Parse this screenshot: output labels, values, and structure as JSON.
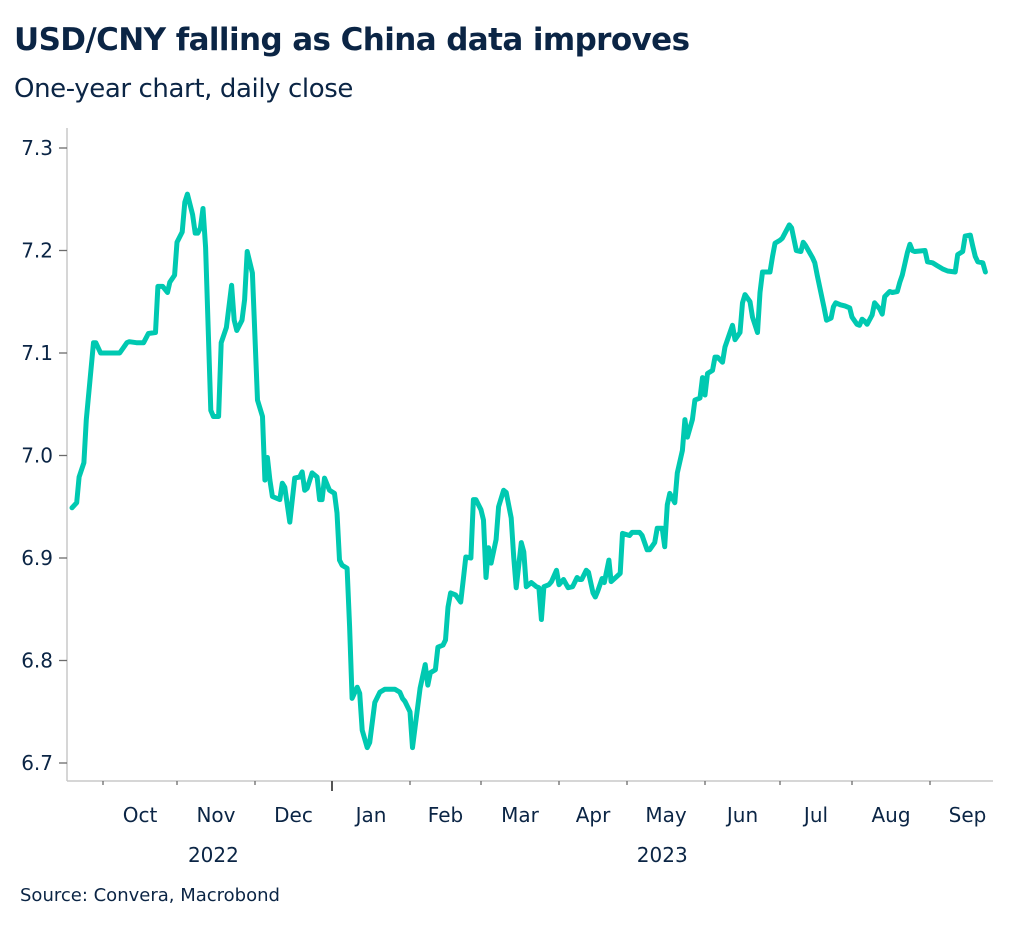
{
  "header": {
    "title": "USD/CNY falling as China data improves",
    "subtitle": "One-year chart, daily close"
  },
  "footer": {
    "source": "Source: Convera, Macrobond"
  },
  "colors": {
    "line": "#00c9b1",
    "text": "#0b2545",
    "axis": "#c8c8c8",
    "tick": "#6b6b6b"
  },
  "chart_data": {
    "type": "line",
    "title": "USD/CNY falling as China data improves",
    "subtitle": "One-year chart, daily close",
    "xlabel": "",
    "ylabel": "",
    "ylim": [
      6.7,
      7.3
    ],
    "xlim": [
      "2022-09-18",
      "2023-09-24"
    ],
    "yticks": [
      6.7,
      6.8,
      6.9,
      7.0,
      7.1,
      7.2,
      7.3
    ],
    "ytick_labels": [
      "6.7",
      "6.8",
      "6.9",
      "7.0",
      "7.1",
      "7.2",
      "7.3"
    ],
    "xticks": [
      {
        "date": "2022-10-01",
        "label": "Oct"
      },
      {
        "date": "2022-11-01",
        "label": "Nov"
      },
      {
        "date": "2022-12-01",
        "label": "Dec"
      },
      {
        "date": "2023-01-01",
        "label": "Jan",
        "year_boundary": true
      },
      {
        "date": "2023-02-01",
        "label": "Feb"
      },
      {
        "date": "2023-03-01",
        "label": "Mar"
      },
      {
        "date": "2023-04-01",
        "label": "Apr"
      },
      {
        "date": "2023-05-01",
        "label": "May"
      },
      {
        "date": "2023-06-01",
        "label": "Jun"
      },
      {
        "date": "2023-07-01",
        "label": "Jul"
      },
      {
        "date": "2023-08-01",
        "label": "Aug"
      },
      {
        "date": "2023-09-01",
        "label": "Sep"
      }
    ],
    "year_labels": [
      {
        "label": "2022",
        "date": "2022-11-15"
      },
      {
        "label": "2023",
        "date": "2023-05-15"
      }
    ],
    "grid": false,
    "legend": "none",
    "source": "Source: Convera, Macrobond",
    "series": [
      {
        "name": "USD/CNY",
        "color": "#00c9b1",
        "points": [
          [
            "2022-09-18",
            6.949
          ],
          [
            "2022-09-20",
            6.954
          ],
          [
            "2022-09-21",
            6.979
          ],
          [
            "2022-09-23",
            6.993
          ],
          [
            "2022-09-24",
            7.035
          ],
          [
            "2022-09-27",
            7.11
          ],
          [
            "2022-09-28",
            7.11
          ],
          [
            "2022-09-30",
            7.1
          ],
          [
            "2022-10-08",
            7.1
          ],
          [
            "2022-10-11",
            7.11
          ],
          [
            "2022-10-12",
            7.111
          ],
          [
            "2022-10-15",
            7.11
          ],
          [
            "2022-10-18",
            7.11
          ],
          [
            "2022-10-20",
            7.119
          ],
          [
            "2022-10-23",
            7.12
          ],
          [
            "2022-10-24",
            7.165
          ],
          [
            "2022-10-26",
            7.165
          ],
          [
            "2022-10-28",
            7.159
          ],
          [
            "2022-10-29",
            7.169
          ],
          [
            "2022-10-31",
            7.176
          ],
          [
            "2022-11-01",
            7.208
          ],
          [
            "2022-11-03",
            7.218
          ],
          [
            "2022-11-04",
            7.247
          ],
          [
            "2022-11-05",
            7.255
          ],
          [
            "2022-11-07",
            7.235
          ],
          [
            "2022-11-08",
            7.217
          ],
          [
            "2022-11-09",
            7.217
          ],
          [
            "2022-11-10",
            7.222
          ],
          [
            "2022-11-11",
            7.241
          ],
          [
            "2022-11-12",
            7.203
          ],
          [
            "2022-11-14",
            7.044
          ],
          [
            "2022-11-15",
            7.038
          ],
          [
            "2022-11-17",
            7.038
          ],
          [
            "2022-11-18",
            7.11
          ],
          [
            "2022-11-20",
            7.125
          ],
          [
            "2022-11-22",
            7.166
          ],
          [
            "2022-11-23",
            7.132
          ],
          [
            "2022-11-24",
            7.122
          ],
          [
            "2022-11-26",
            7.132
          ],
          [
            "2022-11-27",
            7.152
          ],
          [
            "2022-11-28",
            7.199
          ],
          [
            "2022-11-30",
            7.178
          ],
          [
            "2022-12-02",
            7.054
          ],
          [
            "2022-12-04",
            7.038
          ],
          [
            "2022-12-05",
            6.976
          ],
          [
            "2022-12-06",
            6.998
          ],
          [
            "2022-12-07",
            6.976
          ],
          [
            "2022-12-08",
            6.96
          ],
          [
            "2022-12-11",
            6.957
          ],
          [
            "2022-12-12",
            6.973
          ],
          [
            "2022-12-13",
            6.969
          ],
          [
            "2022-12-15",
            6.935
          ],
          [
            "2022-12-17",
            6.978
          ],
          [
            "2022-12-19",
            6.979
          ],
          [
            "2022-12-20",
            6.984
          ],
          [
            "2022-12-21",
            6.966
          ],
          [
            "2022-12-22",
            6.968
          ],
          [
            "2022-12-24",
            6.983
          ],
          [
            "2022-12-26",
            6.979
          ],
          [
            "2022-12-27",
            6.957
          ],
          [
            "2022-12-28",
            6.957
          ],
          [
            "2022-12-29",
            6.978
          ],
          [
            "2022-12-31",
            6.966
          ],
          [
            "2023-01-02",
            6.963
          ],
          [
            "2023-01-03",
            6.944
          ],
          [
            "2023-01-04",
            6.898
          ],
          [
            "2023-01-05",
            6.893
          ],
          [
            "2023-01-07",
            6.89
          ],
          [
            "2023-01-08",
            6.833
          ],
          [
            "2023-01-09",
            6.763
          ],
          [
            "2023-01-11",
            6.774
          ],
          [
            "2023-01-12",
            6.768
          ],
          [
            "2023-01-13",
            6.732
          ],
          [
            "2023-01-15",
            6.715
          ],
          [
            "2023-01-16",
            6.72
          ],
          [
            "2023-01-18",
            6.759
          ],
          [
            "2023-01-20",
            6.769
          ],
          [
            "2023-01-22",
            6.772
          ],
          [
            "2023-01-26",
            6.772
          ],
          [
            "2023-01-28",
            6.769
          ],
          [
            "2023-01-29",
            6.763
          ],
          [
            "2023-01-30",
            6.76
          ],
          [
            "2023-02-01",
            6.75
          ],
          [
            "2023-02-02",
            6.715
          ],
          [
            "2023-02-03",
            6.735
          ],
          [
            "2023-02-05",
            6.773
          ],
          [
            "2023-02-07",
            6.796
          ],
          [
            "2023-02-08",
            6.776
          ],
          [
            "2023-02-09",
            6.788
          ],
          [
            "2023-02-11",
            6.791
          ],
          [
            "2023-02-12",
            6.813
          ],
          [
            "2023-02-14",
            6.815
          ],
          [
            "2023-02-15",
            6.82
          ],
          [
            "2023-02-16",
            6.852
          ],
          [
            "2023-02-17",
            6.866
          ],
          [
            "2023-02-19",
            6.864
          ],
          [
            "2023-02-21",
            6.857
          ],
          [
            "2023-02-22",
            6.879
          ],
          [
            "2023-02-23",
            6.901
          ],
          [
            "2023-02-25",
            6.9
          ],
          [
            "2023-02-26",
            6.957
          ],
          [
            "2023-02-27",
            6.957
          ],
          [
            "2023-03-01",
            6.947
          ],
          [
            "2023-03-02",
            6.937
          ],
          [
            "2023-03-03",
            6.881
          ],
          [
            "2023-03-04",
            6.91
          ],
          [
            "2023-03-05",
            6.895
          ],
          [
            "2023-03-07",
            6.918
          ],
          [
            "2023-03-08",
            6.95
          ],
          [
            "2023-03-10",
            6.966
          ],
          [
            "2023-03-11",
            6.964
          ],
          [
            "2023-03-13",
            6.939
          ],
          [
            "2023-03-14",
            6.901
          ],
          [
            "2023-03-15",
            6.871
          ],
          [
            "2023-03-17",
            6.915
          ],
          [
            "2023-03-18",
            6.906
          ],
          [
            "2023-03-19",
            6.872
          ],
          [
            "2023-03-21",
            6.876
          ],
          [
            "2023-03-23",
            6.872
          ],
          [
            "2023-03-24",
            6.871
          ],
          [
            "2023-03-25",
            6.84
          ],
          [
            "2023-03-26",
            6.872
          ],
          [
            "2023-03-28",
            6.874
          ],
          [
            "2023-03-29",
            6.877
          ],
          [
            "2023-03-31",
            6.888
          ],
          [
            "2023-04-01",
            6.874
          ],
          [
            "2023-04-03",
            6.879
          ],
          [
            "2023-04-05",
            6.871
          ],
          [
            "2023-04-07",
            6.872
          ],
          [
            "2023-04-09",
            6.881
          ],
          [
            "2023-04-10",
            6.879
          ],
          [
            "2023-04-11",
            6.879
          ],
          [
            "2023-04-13",
            6.888
          ],
          [
            "2023-04-14",
            6.886
          ],
          [
            "2023-04-16",
            6.866
          ],
          [
            "2023-04-17",
            6.862
          ],
          [
            "2023-04-18",
            6.867
          ],
          [
            "2023-04-20",
            6.88
          ],
          [
            "2023-04-21",
            6.876
          ],
          [
            "2023-04-23",
            6.898
          ],
          [
            "2023-04-24",
            6.877
          ],
          [
            "2023-04-26",
            6.881
          ],
          [
            "2023-04-28",
            6.885
          ],
          [
            "2023-04-29",
            6.924
          ],
          [
            "2023-05-02",
            6.922
          ],
          [
            "2023-05-03",
            6.925
          ],
          [
            "2023-05-06",
            6.925
          ],
          [
            "2023-05-07",
            6.922
          ],
          [
            "2023-05-09",
            6.908
          ],
          [
            "2023-05-10",
            6.908
          ],
          [
            "2023-05-12",
            6.915
          ],
          [
            "2023-05-13",
            6.929
          ],
          [
            "2023-05-15",
            6.929
          ],
          [
            "2023-05-16",
            6.911
          ],
          [
            "2023-05-17",
            6.952
          ],
          [
            "2023-05-18",
            6.963
          ],
          [
            "2023-05-20",
            6.954
          ],
          [
            "2023-05-21",
            6.983
          ],
          [
            "2023-05-23",
            7.005
          ],
          [
            "2023-05-24",
            7.035
          ],
          [
            "2023-05-25",
            7.018
          ],
          [
            "2023-05-27",
            7.035
          ],
          [
            "2023-05-28",
            7.054
          ],
          [
            "2023-05-30",
            7.056
          ],
          [
            "2023-05-31",
            7.076
          ],
          [
            "2023-06-01",
            7.059
          ],
          [
            "2023-06-02",
            7.08
          ],
          [
            "2023-06-04",
            7.083
          ],
          [
            "2023-06-05",
            7.096
          ],
          [
            "2023-06-06",
            7.096
          ],
          [
            "2023-06-08",
            7.091
          ],
          [
            "2023-06-09",
            7.106
          ],
          [
            "2023-06-11",
            7.12
          ],
          [
            "2023-06-12",
            7.127
          ],
          [
            "2023-06-13",
            7.113
          ],
          [
            "2023-06-15",
            7.12
          ],
          [
            "2023-06-16",
            7.149
          ],
          [
            "2023-06-17",
            7.157
          ],
          [
            "2023-06-19",
            7.15
          ],
          [
            "2023-06-20",
            7.135
          ],
          [
            "2023-06-22",
            7.12
          ],
          [
            "2023-06-23",
            7.159
          ],
          [
            "2023-06-24",
            7.179
          ],
          [
            "2023-06-27",
            7.179
          ],
          [
            "2023-06-28",
            7.194
          ],
          [
            "2023-06-29",
            7.207
          ],
          [
            "2023-07-01",
            7.21
          ],
          [
            "2023-07-02",
            7.212
          ],
          [
            "2023-07-05",
            7.225
          ],
          [
            "2023-07-06",
            7.222
          ],
          [
            "2023-07-08",
            7.2
          ],
          [
            "2023-07-10",
            7.199
          ],
          [
            "2023-07-11",
            7.208
          ],
          [
            "2023-07-12",
            7.205
          ],
          [
            "2023-07-15",
            7.193
          ],
          [
            "2023-07-16",
            7.188
          ],
          [
            "2023-07-17",
            7.176
          ],
          [
            "2023-07-20",
            7.144
          ],
          [
            "2023-07-21",
            7.132
          ],
          [
            "2023-07-23",
            7.134
          ],
          [
            "2023-07-24",
            7.145
          ],
          [
            "2023-07-25",
            7.149
          ],
          [
            "2023-07-27",
            7.147
          ],
          [
            "2023-07-29",
            7.146
          ],
          [
            "2023-07-31",
            7.144
          ],
          [
            "2023-08-01",
            7.135
          ],
          [
            "2023-08-03",
            7.128
          ],
          [
            "2023-08-04",
            7.127
          ],
          [
            "2023-08-05",
            7.133
          ],
          [
            "2023-08-06",
            7.131
          ],
          [
            "2023-08-07",
            7.128
          ],
          [
            "2023-08-09",
            7.137
          ],
          [
            "2023-08-10",
            7.149
          ],
          [
            "2023-08-12",
            7.143
          ],
          [
            "2023-08-13",
            7.138
          ],
          [
            "2023-08-14",
            7.155
          ],
          [
            "2023-08-16",
            7.16
          ],
          [
            "2023-08-17",
            7.159
          ],
          [
            "2023-08-19",
            7.16
          ],
          [
            "2023-08-20",
            7.169
          ],
          [
            "2023-08-21",
            7.176
          ],
          [
            "2023-08-23",
            7.198
          ],
          [
            "2023-08-24",
            7.206
          ],
          [
            "2023-08-25",
            7.2
          ],
          [
            "2023-08-26",
            7.199
          ],
          [
            "2023-08-30",
            7.2
          ],
          [
            "2023-08-31",
            7.189
          ],
          [
            "2023-09-02",
            7.188
          ],
          [
            "2023-09-04",
            7.185
          ],
          [
            "2023-09-06",
            7.182
          ],
          [
            "2023-09-08",
            7.18
          ],
          [
            "2023-09-11",
            7.179
          ],
          [
            "2023-09-12",
            7.196
          ],
          [
            "2023-09-14",
            7.199
          ],
          [
            "2023-09-15",
            7.214
          ],
          [
            "2023-09-17",
            7.215
          ],
          [
            "2023-09-18",
            7.204
          ],
          [
            "2023-09-19",
            7.194
          ],
          [
            "2023-09-20",
            7.189
          ],
          [
            "2023-09-22",
            7.188
          ],
          [
            "2023-09-23",
            7.179
          ]
        ]
      }
    ]
  }
}
